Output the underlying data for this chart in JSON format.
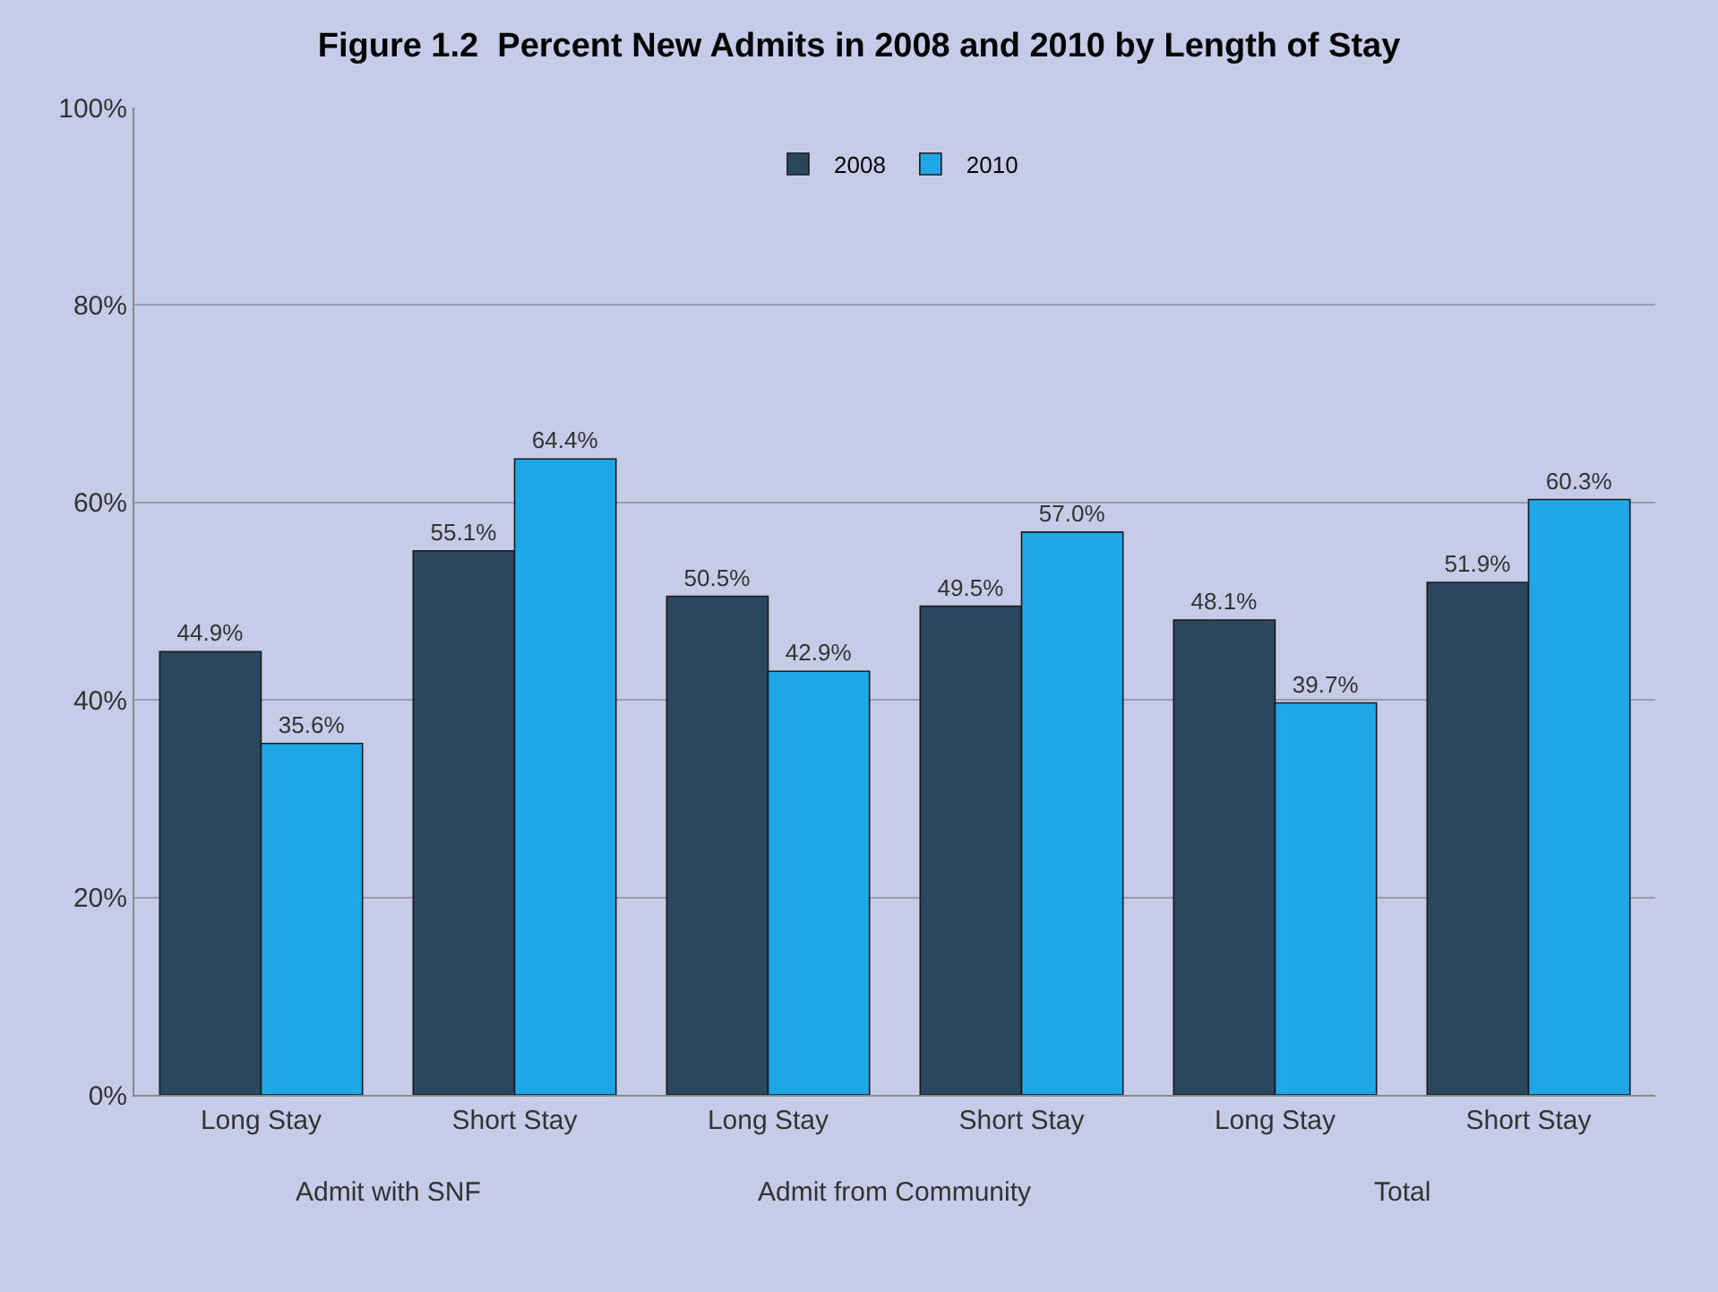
{
  "chart_data": {
    "type": "bar",
    "title": "Figure 1.2  Percent New Admits in 2008 and 2010 by Length of Stay",
    "categories": [
      "Long Stay",
      "Short Stay",
      "Long Stay",
      "Short Stay",
      "Long Stay",
      "Short Stay"
    ],
    "series": [
      {
        "name": "2008",
        "color": "#2b4760",
        "values": [
          44.9,
          55.1,
          50.5,
          49.5,
          48.1,
          51.9
        ],
        "value_labels": [
          "44.9%",
          "55.1%",
          "50.5%",
          "49.5%",
          "48.1%",
          "51.9%"
        ]
      },
      {
        "name": "2010",
        "color": "#1fa7e8",
        "values": [
          35.6,
          64.4,
          42.9,
          57.0,
          39.7,
          60.3
        ],
        "value_labels": [
          "35.6%",
          "64.4%",
          "42.9%",
          "57.0%",
          "39.7%",
          "60.3%"
        ]
      }
    ],
    "annotations": [
      "Admit with SNF",
      "Admit from Community",
      "Total"
    ],
    "ylim": [
      0,
      100
    ],
    "yticks": [
      {
        "value": 0,
        "label": "0%"
      },
      {
        "value": 20,
        "label": "20%"
      },
      {
        "value": 40,
        "label": "40%"
      },
      {
        "value": 60,
        "label": "60%"
      },
      {
        "value": 80,
        "label": "80%"
      },
      {
        "value": 100,
        "label": "100%"
      }
    ],
    "grid": "y",
    "legend": "top"
  }
}
